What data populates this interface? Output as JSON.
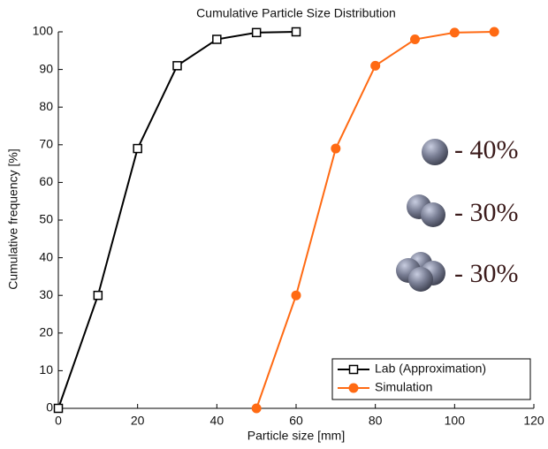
{
  "chart_data": {
    "type": "line",
    "title": "Cumulative Particle Size Distribution",
    "x_label": "Particle size [mm]",
    "y_label": "Cumulative frequency [%]",
    "series": [
      {
        "name": "Lab (Approximation)",
        "color": "#000000",
        "marker": "square",
        "x": [
          0,
          10,
          20,
          30,
          40,
          50,
          60
        ],
        "values": [
          0,
          30,
          69,
          91,
          98,
          99.8,
          100
        ]
      },
      {
        "name": "Simulation",
        "color": "#ff6a13",
        "marker": "circle",
        "x": [
          50,
          60,
          70,
          80,
          90,
          100,
          110
        ],
        "values": [
          0,
          30,
          69,
          91,
          98,
          99.8,
          100
        ]
      }
    ],
    "xlim": [
      0,
      120
    ],
    "xticks": [
      0,
      20,
      40,
      60,
      80,
      100,
      120
    ],
    "ylim": [
      0,
      100
    ],
    "yticks": [
      0,
      10,
      20,
      30,
      40,
      50,
      60,
      70,
      80,
      90,
      100
    ],
    "grid": false,
    "legend": "lower right",
    "annotations": [
      "- 40%",
      "- 30%",
      "- 30%"
    ]
  }
}
